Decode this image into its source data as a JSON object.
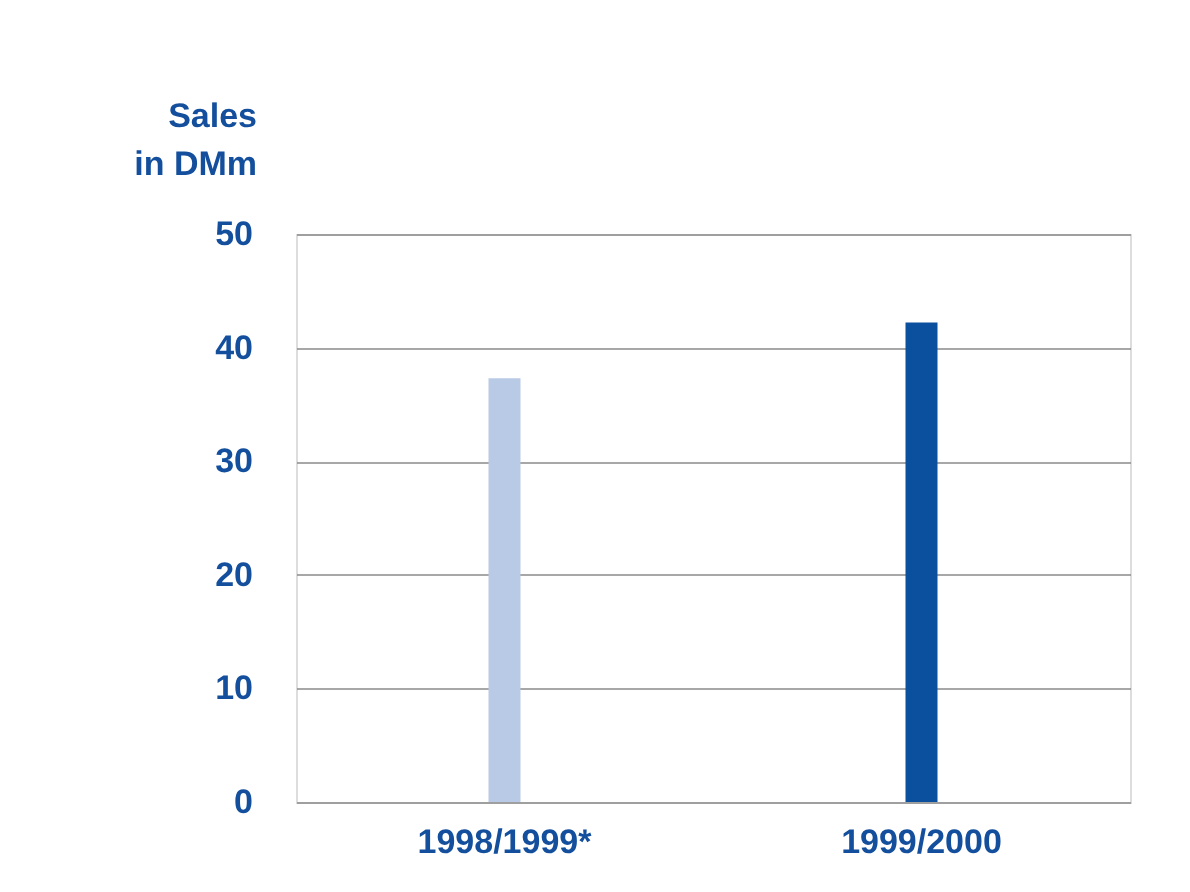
{
  "chart_data": {
    "type": "bar",
    "ylabel": "Sales\nin DMm",
    "categories": [
      "1998/1999*",
      "1999/2000"
    ],
    "values": [
      37.3,
      42.2
    ],
    "colors": [
      "#b9cae6",
      "#0b4f9f"
    ],
    "ylim": [
      0,
      50
    ],
    "yticks": [
      0,
      10,
      20,
      30,
      40,
      50
    ],
    "grid": "y"
  }
}
